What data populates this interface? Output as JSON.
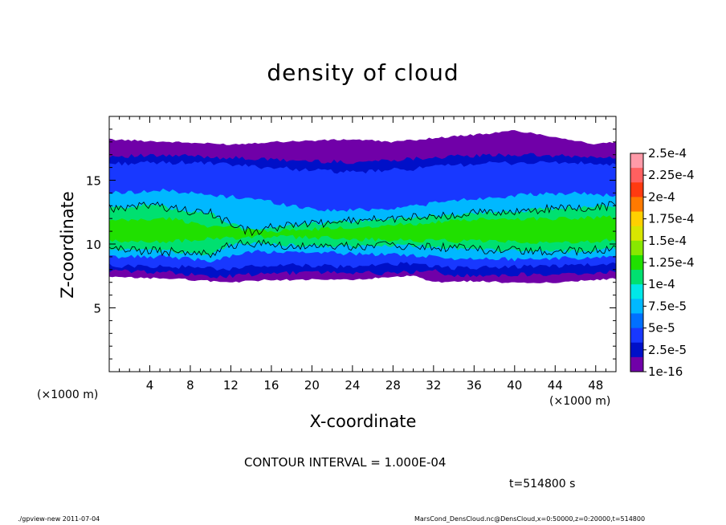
{
  "chart_data": {
    "type": "heatmap",
    "title": "density of cloud",
    "xlabel": "X-coordinate",
    "ylabel": "Z-coordinate",
    "x_unit_label": "(×1000 m)",
    "xlim": [
      0,
      50
    ],
    "ylim": [
      0,
      20
    ],
    "x_ticks": [
      4,
      8,
      12,
      16,
      20,
      24,
      28,
      32,
      36,
      40,
      44,
      48
    ],
    "y_ticks": [
      5,
      10,
      15
    ],
    "colorbar": {
      "labels": [
        "2.5e-4",
        "2.25e-4",
        "2e-4",
        "1.75e-4",
        "1.5e-4",
        "1.25e-4",
        "1e-4",
        "7.5e-5",
        "5e-5",
        "2.5e-5",
        "1e-16"
      ],
      "colors": [
        "#ff9aa8",
        "#ff6060",
        "#ff3a10",
        "#ff7a00",
        "#ffd000",
        "#d8e600",
        "#88e800",
        "#20e000",
        "#00e070",
        "#00e8e8",
        "#00b8ff",
        "#0070ff",
        "#1838ff",
        "#0010c8",
        "#7000a8"
      ]
    },
    "layers": [
      {
        "level": "1e-16",
        "color": "#7000a8",
        "bottom": [
          [
            0,
            7.4
          ],
          [
            6,
            7.3
          ],
          [
            12,
            7.0
          ],
          [
            16,
            7.2
          ],
          [
            24,
            7.2
          ],
          [
            30,
            7.5
          ],
          [
            32,
            7.0
          ],
          [
            36,
            7.1
          ],
          [
            42,
            6.9
          ],
          [
            48,
            7.2
          ],
          [
            50,
            7.3
          ]
        ],
        "top": [
          [
            0,
            18.2
          ],
          [
            6,
            18.0
          ],
          [
            12,
            17.8
          ],
          [
            16,
            18.0
          ],
          [
            20,
            18.1
          ],
          [
            24,
            18.2
          ],
          [
            28,
            18.0
          ],
          [
            32,
            18.3
          ],
          [
            38,
            18.7
          ],
          [
            40,
            18.9
          ],
          [
            44,
            18.4
          ],
          [
            48,
            17.8
          ],
          [
            50,
            18.0
          ]
        ]
      },
      {
        "level": "2.5e-5",
        "color": "#0010c8",
        "bottom": [
          [
            0,
            7.9
          ],
          [
            6,
            7.8
          ],
          [
            10,
            7.4
          ],
          [
            14,
            7.6
          ],
          [
            20,
            7.8
          ],
          [
            28,
            7.7
          ],
          [
            32,
            7.9
          ],
          [
            34,
            7.5
          ],
          [
            40,
            7.6
          ],
          [
            46,
            7.7
          ],
          [
            50,
            7.8
          ]
        ],
        "top": [
          [
            0,
            16.9
          ],
          [
            8,
            16.9
          ],
          [
            16,
            16.6
          ],
          [
            24,
            16.4
          ],
          [
            32,
            16.8
          ],
          [
            40,
            17.0
          ],
          [
            48,
            16.8
          ],
          [
            50,
            16.7
          ]
        ]
      },
      {
        "level": "5e-5",
        "color": "#1838ff",
        "bottom": [
          [
            0,
            8.3
          ],
          [
            8,
            8.2
          ],
          [
            12,
            8.0
          ],
          [
            16,
            8.4
          ],
          [
            24,
            8.2
          ],
          [
            30,
            8.5
          ],
          [
            34,
            8.1
          ],
          [
            40,
            8.2
          ],
          [
            50,
            8.4
          ]
        ],
        "top": [
          [
            0,
            16.3
          ],
          [
            8,
            16.4
          ],
          [
            16,
            16.0
          ],
          [
            24,
            15.6
          ],
          [
            30,
            15.9
          ],
          [
            36,
            16.3
          ],
          [
            44,
            16.4
          ],
          [
            50,
            16.2
          ]
        ]
      },
      {
        "level": "7.5e-5",
        "color": "#00b8ff",
        "bottom": [
          [
            0,
            9.0
          ],
          [
            6,
            9.0
          ],
          [
            10,
            8.7
          ],
          [
            14,
            9.4
          ],
          [
            20,
            9.3
          ],
          [
            28,
            9.2
          ],
          [
            34,
            8.9
          ],
          [
            40,
            8.8
          ],
          [
            50,
            9.0
          ]
        ],
        "top": [
          [
            0,
            14.0
          ],
          [
            6,
            14.2
          ],
          [
            10,
            13.8
          ],
          [
            14,
            13.6
          ],
          [
            18,
            13.0
          ],
          [
            22,
            12.6
          ],
          [
            28,
            12.8
          ],
          [
            34,
            13.4
          ],
          [
            40,
            13.8
          ],
          [
            46,
            14.0
          ],
          [
            50,
            13.8
          ]
        ]
      },
      {
        "level": "1e-4",
        "color": "#00e070",
        "bottom": [
          [
            0,
            9.6
          ],
          [
            6,
            9.4
          ],
          [
            10,
            9.2
          ],
          [
            12,
            10.0
          ],
          [
            15,
            10.0
          ],
          [
            18,
            9.9
          ],
          [
            24,
            9.8
          ],
          [
            30,
            9.9
          ],
          [
            36,
            9.6
          ],
          [
            44,
            9.4
          ],
          [
            50,
            9.6
          ]
        ],
        "top": [
          [
            0,
            12.8
          ],
          [
            4,
            13.1
          ],
          [
            8,
            12.6
          ],
          [
            10,
            12.4
          ],
          [
            12,
            11.6
          ],
          [
            14,
            10.9
          ],
          [
            16,
            11.3
          ],
          [
            20,
            11.6
          ],
          [
            24,
            11.8
          ],
          [
            28,
            12.0
          ],
          [
            32,
            12.2
          ],
          [
            36,
            12.4
          ],
          [
            40,
            12.6
          ],
          [
            44,
            12.8
          ],
          [
            50,
            13.0
          ]
        ]
      },
      {
        "level": "1.25e-4",
        "color": "#20e000",
        "bottom": [
          [
            0,
            10.2
          ],
          [
            6,
            10.2
          ],
          [
            10,
            10.4
          ],
          [
            16,
            10.6
          ],
          [
            24,
            10.4
          ],
          [
            30,
            10.3
          ],
          [
            36,
            10.2
          ],
          [
            42,
            10.1
          ],
          [
            50,
            10.3
          ]
        ],
        "top": [
          [
            0,
            11.8
          ],
          [
            6,
            12.0
          ],
          [
            10,
            11.4
          ],
          [
            16,
            11.0
          ],
          [
            24,
            11.3
          ],
          [
            30,
            11.6
          ],
          [
            36,
            11.9
          ],
          [
            42,
            12.0
          ],
          [
            50,
            12.1
          ]
        ]
      }
    ]
  },
  "colorbar_labels": [
    "2.5e-4",
    "2.25e-4",
    "2e-4",
    "1.75e-4",
    "1.5e-4",
    "1.25e-4",
    "1e-4",
    "7.5e-5",
    "5e-5",
    "2.5e-5",
    "1e-16"
  ],
  "contour_interval_text": "CONTOUR INTERVAL = 1.000E-04",
  "timestamp_text": "t=514800 s",
  "footer": {
    "left": "./gpview-new  2011-07-04",
    "right": "MarsCond_DensCloud.nc@DensCloud,x=0:50000,z=0:20000,t=514800"
  }
}
